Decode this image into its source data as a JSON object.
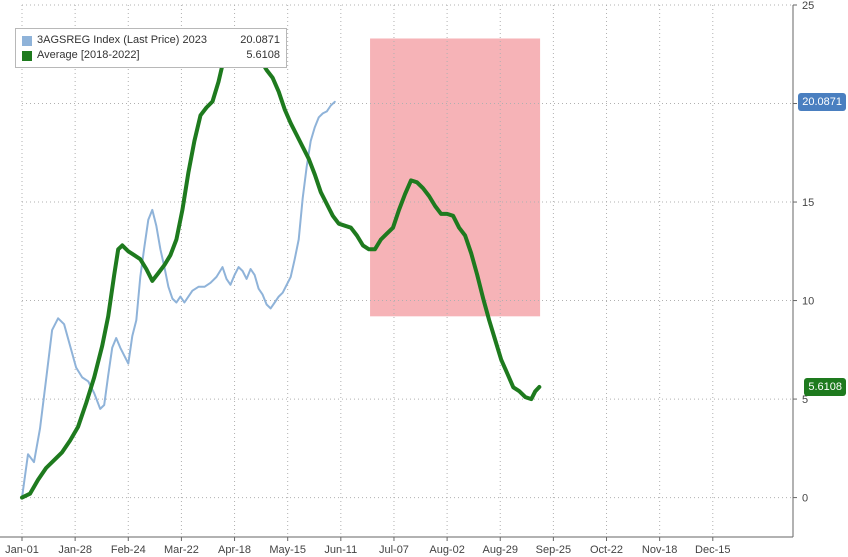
{
  "chart_data": {
    "type": "line",
    "x_labels": [
      "Jan-01",
      "Jan-28",
      "Feb-24",
      "Mar-22",
      "Apr-18",
      "May-15",
      "Jun-11",
      "Jul-07",
      "Aug-02",
      "Aug-29",
      "Sep-25",
      "Oct-22",
      "Nov-18",
      "Dec-15"
    ],
    "yticks": [
      0,
      5,
      10,
      15,
      20,
      25
    ],
    "ylim": [
      -2,
      25
    ],
    "grid": true,
    "legend_position": "top-left",
    "highlight_region": {
      "x_start": "Jun-28",
      "x_end": "Sep-19",
      "y_start": 9.2,
      "y_end": 23.3,
      "color": "#f4a6aa"
    },
    "series": [
      {
        "name": "3AGSREG Index (Last Price) 2023",
        "last_value": "20.0871",
        "color": "#8fb3d9",
        "points": [
          [
            0,
            0
          ],
          [
            3,
            2.2
          ],
          [
            6,
            1.8
          ],
          [
            9,
            3.5
          ],
          [
            12,
            6
          ],
          [
            15,
            8.5
          ],
          [
            18,
            9.1
          ],
          [
            21,
            8.8
          ],
          [
            24,
            7.7
          ],
          [
            27,
            6.6
          ],
          [
            30,
            6.1
          ],
          [
            33,
            5.9
          ],
          [
            36,
            5.3
          ],
          [
            39,
            4.5
          ],
          [
            41,
            4.7
          ],
          [
            43,
            6.2
          ],
          [
            45,
            7.6
          ],
          [
            47,
            8.1
          ],
          [
            49,
            7.6
          ],
          [
            51,
            7.2
          ],
          [
            53,
            6.8
          ],
          [
            55,
            8.2
          ],
          [
            57,
            9
          ],
          [
            59,
            11.2
          ],
          [
            61,
            12.7
          ],
          [
            63,
            14.1
          ],
          [
            65,
            14.6
          ],
          [
            67,
            13.8
          ],
          [
            69,
            12.6
          ],
          [
            71,
            11.7
          ],
          [
            73,
            10.7
          ],
          [
            75,
            10.1
          ],
          [
            77,
            9.9
          ],
          [
            79,
            10.2
          ],
          [
            81,
            9.9
          ],
          [
            83,
            10.2
          ],
          [
            85,
            10.5
          ],
          [
            88,
            10.7
          ],
          [
            91,
            10.7
          ],
          [
            94,
            10.9
          ],
          [
            97,
            11.2
          ],
          [
            100,
            11.7
          ],
          [
            102,
            11.1
          ],
          [
            104,
            10.8
          ],
          [
            106,
            11.3
          ],
          [
            108,
            11.7
          ],
          [
            110,
            11.5
          ],
          [
            112,
            11.1
          ],
          [
            114,
            11.6
          ],
          [
            116,
            11.3
          ],
          [
            118,
            10.6
          ],
          [
            120,
            10.3
          ],
          [
            122,
            9.8
          ],
          [
            124,
            9.6
          ],
          [
            126,
            9.9
          ],
          [
            128,
            10.2
          ],
          [
            130,
            10.4
          ],
          [
            132,
            10.8
          ],
          [
            134,
            11.2
          ],
          [
            136,
            12.1
          ],
          [
            138,
            13.1
          ],
          [
            140,
            15.2
          ],
          [
            142,
            16.8
          ],
          [
            144,
            18.1
          ],
          [
            146,
            18.8
          ],
          [
            148,
            19.3
          ],
          [
            150,
            19.5
          ],
          [
            152,
            19.6
          ],
          [
            154,
            19.9
          ],
          [
            156,
            20.0871
          ]
        ]
      },
      {
        "name": "Average [2018-2022]",
        "last_value": "5.6108",
        "color": "#1e7a1e",
        "points": [
          [
            0,
            0
          ],
          [
            4,
            0.2
          ],
          [
            8,
            0.9
          ],
          [
            12,
            1.5
          ],
          [
            16,
            1.9
          ],
          [
            20,
            2.3
          ],
          [
            24,
            2.9
          ],
          [
            28,
            3.6
          ],
          [
            32,
            4.8
          ],
          [
            36,
            6.1
          ],
          [
            40,
            7.7
          ],
          [
            43,
            9.2
          ],
          [
            46,
            11.3
          ],
          [
            48,
            12.6
          ],
          [
            50,
            12.8
          ],
          [
            53,
            12.5
          ],
          [
            56,
            12.3
          ],
          [
            59,
            12.1
          ],
          [
            62,
            11.6
          ],
          [
            65,
            11
          ],
          [
            68,
            11.4
          ],
          [
            71,
            11.8
          ],
          [
            74,
            12.3
          ],
          [
            77,
            13.1
          ],
          [
            80,
            14.6
          ],
          [
            83,
            16.5
          ],
          [
            86,
            18.1
          ],
          [
            89,
            19.4
          ],
          [
            92,
            19.8
          ],
          [
            95,
            20.1
          ],
          [
            98,
            21.1
          ],
          [
            101,
            22.4
          ],
          [
            104,
            23
          ],
          [
            107,
            22.5
          ],
          [
            110,
            22.1
          ],
          [
            113,
            22.2
          ],
          [
            116,
            22.6
          ],
          [
            119,
            22.2
          ],
          [
            122,
            21.7
          ],
          [
            125,
            21.3
          ],
          [
            128,
            20.6
          ],
          [
            131,
            19.7
          ],
          [
            134,
            19
          ],
          [
            137,
            18.4
          ],
          [
            140,
            17.8
          ],
          [
            143,
            17.2
          ],
          [
            146,
            16.4
          ],
          [
            149,
            15.5
          ],
          [
            152,
            14.9
          ],
          [
            155,
            14.3
          ],
          [
            158,
            13.9
          ],
          [
            161,
            13.8
          ],
          [
            164,
            13.7
          ],
          [
            167,
            13.3
          ],
          [
            170,
            12.8
          ],
          [
            173,
            12.6
          ],
          [
            176,
            12.6
          ],
          [
            179,
            13.1
          ],
          [
            182,
            13.4
          ],
          [
            185,
            13.7
          ],
          [
            188,
            14.6
          ],
          [
            191,
            15.4
          ],
          [
            194,
            16.1
          ],
          [
            197,
            16
          ],
          [
            200,
            15.7
          ],
          [
            203,
            15.3
          ],
          [
            206,
            14.8
          ],
          [
            209,
            14.4
          ],
          [
            212,
            14.4
          ],
          [
            215,
            14.3
          ],
          [
            218,
            13.7
          ],
          [
            221,
            13.3
          ],
          [
            224,
            12.4
          ],
          [
            227,
            11.3
          ],
          [
            230,
            10.1
          ],
          [
            233,
            9
          ],
          [
            236,
            8
          ],
          [
            239,
            7
          ],
          [
            242,
            6.3
          ],
          [
            245,
            5.6
          ],
          [
            248,
            5.4
          ],
          [
            251,
            5.1
          ],
          [
            254,
            5
          ],
          [
            256,
            5.4
          ],
          [
            258,
            5.6108
          ]
        ]
      }
    ]
  }
}
